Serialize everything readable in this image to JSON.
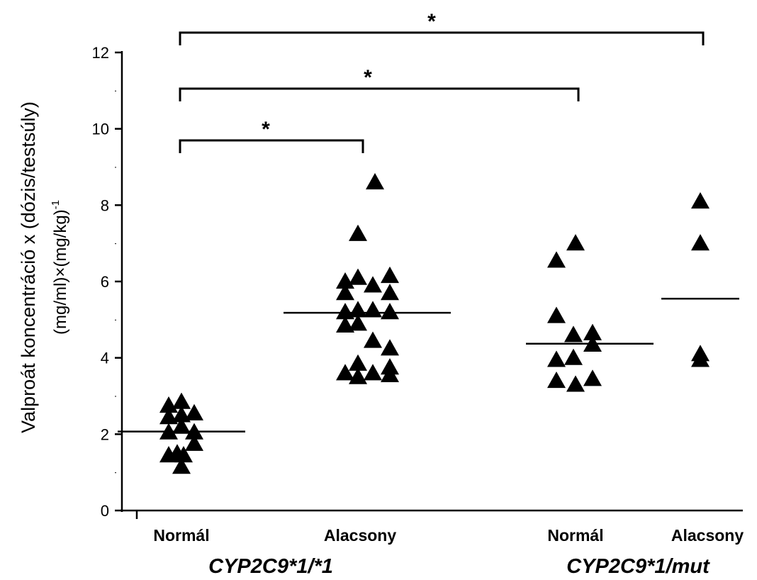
{
  "chart_data": {
    "type": "scatter",
    "ylabel_line1": "Valproát koncentráció x (dózis/testsúly)",
    "ylabel_line2": "(mg/ml)×(mg/kg)",
    "ylabel_sup": "-1",
    "ylim": [
      0,
      12
    ],
    "yticks": [
      0,
      2,
      4,
      6,
      8,
      10,
      12
    ],
    "grid": false,
    "marker": "triangle",
    "categories": [
      "Normál",
      "Alacsony",
      "Normál",
      "Alacsony"
    ],
    "groups": [
      {
        "label": "CYP2C9*1/*1",
        "categories": [
          0,
          1
        ]
      },
      {
        "label": "CYP2C9*1/mut",
        "categories": [
          2,
          3
        ]
      }
    ],
    "series": [
      {
        "category": 0,
        "mean": 2.07,
        "points": [
          {
            "x": -0.3,
            "y": 2.75
          },
          {
            "x": -0.3,
            "y": 2.45
          },
          {
            "x": -0.3,
            "y": 2.05
          },
          {
            "x": -0.3,
            "y": 1.45
          },
          {
            "x": 0.0,
            "y": 2.85
          },
          {
            "x": 0.0,
            "y": 2.5
          },
          {
            "x": 0.0,
            "y": 2.2
          },
          {
            "x": -0.1,
            "y": 1.5
          },
          {
            "x": 0.05,
            "y": 1.45
          },
          {
            "x": 0.0,
            "y": 1.15
          },
          {
            "x": 0.3,
            "y": 2.55
          },
          {
            "x": 0.3,
            "y": 2.05
          },
          {
            "x": 0.3,
            "y": 1.75
          }
        ]
      },
      {
        "category": 1,
        "mean": 5.18,
        "points": [
          {
            "x": -0.35,
            "y": 6.0
          },
          {
            "x": -0.35,
            "y": 5.7
          },
          {
            "x": -0.35,
            "y": 5.2
          },
          {
            "x": -0.35,
            "y": 4.85
          },
          {
            "x": -0.35,
            "y": 3.6
          },
          {
            "x": -0.05,
            "y": 7.25
          },
          {
            "x": -0.05,
            "y": 6.1
          },
          {
            "x": -0.05,
            "y": 5.25
          },
          {
            "x": -0.05,
            "y": 4.9
          },
          {
            "x": -0.05,
            "y": 3.85
          },
          {
            "x": -0.05,
            "y": 3.5
          },
          {
            "x": 0.35,
            "y": 8.6
          },
          {
            "x": 0.3,
            "y": 5.9
          },
          {
            "x": 0.3,
            "y": 5.25
          },
          {
            "x": 0.3,
            "y": 4.45
          },
          {
            "x": 0.3,
            "y": 3.6
          },
          {
            "x": 0.7,
            "y": 6.15
          },
          {
            "x": 0.7,
            "y": 5.7
          },
          {
            "x": 0.7,
            "y": 5.2
          },
          {
            "x": 0.7,
            "y": 4.25
          },
          {
            "x": 0.7,
            "y": 3.75
          },
          {
            "x": 0.7,
            "y": 3.55
          }
        ]
      },
      {
        "category": 2,
        "mean": 4.37,
        "points": [
          {
            "x": -0.45,
            "y": 6.55
          },
          {
            "x": -0.45,
            "y": 5.1
          },
          {
            "x": -0.45,
            "y": 3.95
          },
          {
            "x": -0.45,
            "y": 3.4
          },
          {
            "x": 0.0,
            "y": 7.0
          },
          {
            "x": -0.05,
            "y": 4.6
          },
          {
            "x": -0.05,
            "y": 4.0
          },
          {
            "x": 0.0,
            "y": 3.3
          },
          {
            "x": 0.4,
            "y": 4.65
          },
          {
            "x": 0.4,
            "y": 4.35
          },
          {
            "x": 0.4,
            "y": 3.45
          }
        ]
      },
      {
        "category": 3,
        "mean": 5.55,
        "points": [
          {
            "x": 0.0,
            "y": 8.1
          },
          {
            "x": 0.0,
            "y": 7.0
          },
          {
            "x": 0.0,
            "y": 4.1
          },
          {
            "x": 0.0,
            "y": 3.95
          }
        ]
      }
    ],
    "significance": [
      {
        "from": 0,
        "to": 1,
        "label": "*",
        "y": 9.6
      },
      {
        "from": 0,
        "to": 2,
        "label": "*",
        "y": 11.0
      },
      {
        "from": 0,
        "to": 3,
        "label": "*",
        "y": 12.4
      }
    ]
  }
}
